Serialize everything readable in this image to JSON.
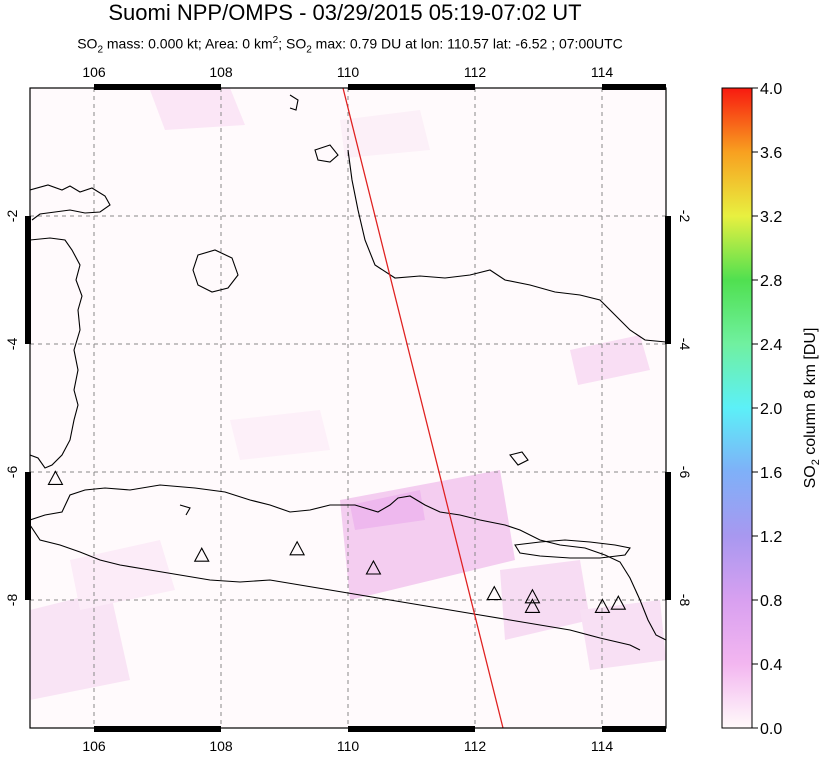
{
  "title": "Suomi NPP/OMPS - 03/29/2015 05:19-07:02 UT",
  "subtitle": {
    "part1": "SO",
    "sub1": "2",
    "part2": " mass: 0.000 kt; Area: 0 km",
    "sup": "2",
    "part3": "; SO",
    "sub2": "2",
    "part4": " max: 0.79 DU at lon: 110.57 lat: -6.52 ; 07:00UTC"
  },
  "map": {
    "lon_ticks": [
      "106",
      "108",
      "110",
      "112",
      "114"
    ],
    "lat_ticks": [
      "-2",
      "-4",
      "-6",
      "-8"
    ],
    "lon_range": [
      105,
      115
    ],
    "lat_range": [
      -10,
      0
    ]
  },
  "colorbar": {
    "ticks": [
      "4.0",
      "3.6",
      "3.2",
      "2.8",
      "2.4",
      "2.0",
      "1.6",
      "1.2",
      "0.8",
      "0.4",
      "0.0"
    ],
    "label_prefix": "SO",
    "label_sub": "2",
    "label_suffix": " column 8 km [DU]",
    "colors": [
      "#fffafa",
      "#f3b6f0",
      "#b8a0ee",
      "#7fa8f0",
      "#5fe8f5",
      "#7cf0b0",
      "#5be05a",
      "#d6f040",
      "#f8d030",
      "#f88020",
      "#f81a10"
    ]
  },
  "volcanoes": [
    {
      "lon": 105.4,
      "lat": -6.1
    },
    {
      "lon": 107.7,
      "lat": -7.3
    },
    {
      "lon": 109.2,
      "lat": -7.2
    },
    {
      "lon": 110.4,
      "lat": -7.5
    },
    {
      "lon": 112.3,
      "lat": -7.9
    },
    {
      "lon": 112.9,
      "lat": -7.95
    },
    {
      "lon": 112.9,
      "lat": -8.1
    },
    {
      "lon": 114.0,
      "lat": -8.1
    },
    {
      "lon": 114.25,
      "lat": -8.05
    }
  ],
  "orbit_line_color": "#e02020"
}
